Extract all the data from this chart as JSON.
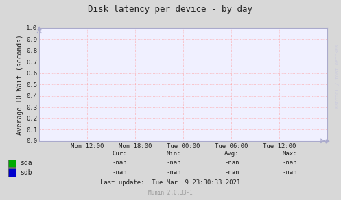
{
  "title": "Disk latency per device - by day",
  "ylabel": "Average IO Wait (seconds)",
  "background_color": "#d8d8d8",
  "plot_bg_color": "#f0f0ff",
  "grid_color": "#ff9999",
  "ylim": [
    0.0,
    1.0
  ],
  "yticks": [
    0.0,
    0.1,
    0.2,
    0.3,
    0.4,
    0.5,
    0.6,
    0.7,
    0.8,
    0.9,
    1.0
  ],
  "xtick_labels": [
    "Mon 12:00",
    "Mon 18:00",
    "Tue 00:00",
    "Tue 06:00",
    "Tue 12:00"
  ],
  "xtick_positions": [
    0.167,
    0.333,
    0.5,
    0.667,
    0.833
  ],
  "legend_entries": [
    {
      "label": "sda",
      "color": "#00aa00"
    },
    {
      "label": "sdb",
      "color": "#0000cc"
    }
  ],
  "stats_headers": [
    "Cur:",
    "Min:",
    "Avg:",
    "Max:"
  ],
  "stats_sda": [
    "-nan",
    "-nan",
    "-nan",
    "-nan"
  ],
  "stats_sdb": [
    "-nan",
    "-nan",
    "-nan",
    "-nan"
  ],
  "last_update": "Last update:  Tue Mar  9 23:30:33 2021",
  "munin_version": "Munin 2.0.33-1",
  "title_fontsize": 9,
  "axis_label_fontsize": 7,
  "tick_fontsize": 6.5,
  "stats_fontsize": 6.5,
  "legend_fontsize": 7,
  "munin_fontsize": 5.5,
  "watermark_fontsize": 5,
  "spine_color": "#aaaacc",
  "arrow_color": "#aaaacc",
  "text_color": "#222222",
  "watermark_color": "#ccccdd"
}
